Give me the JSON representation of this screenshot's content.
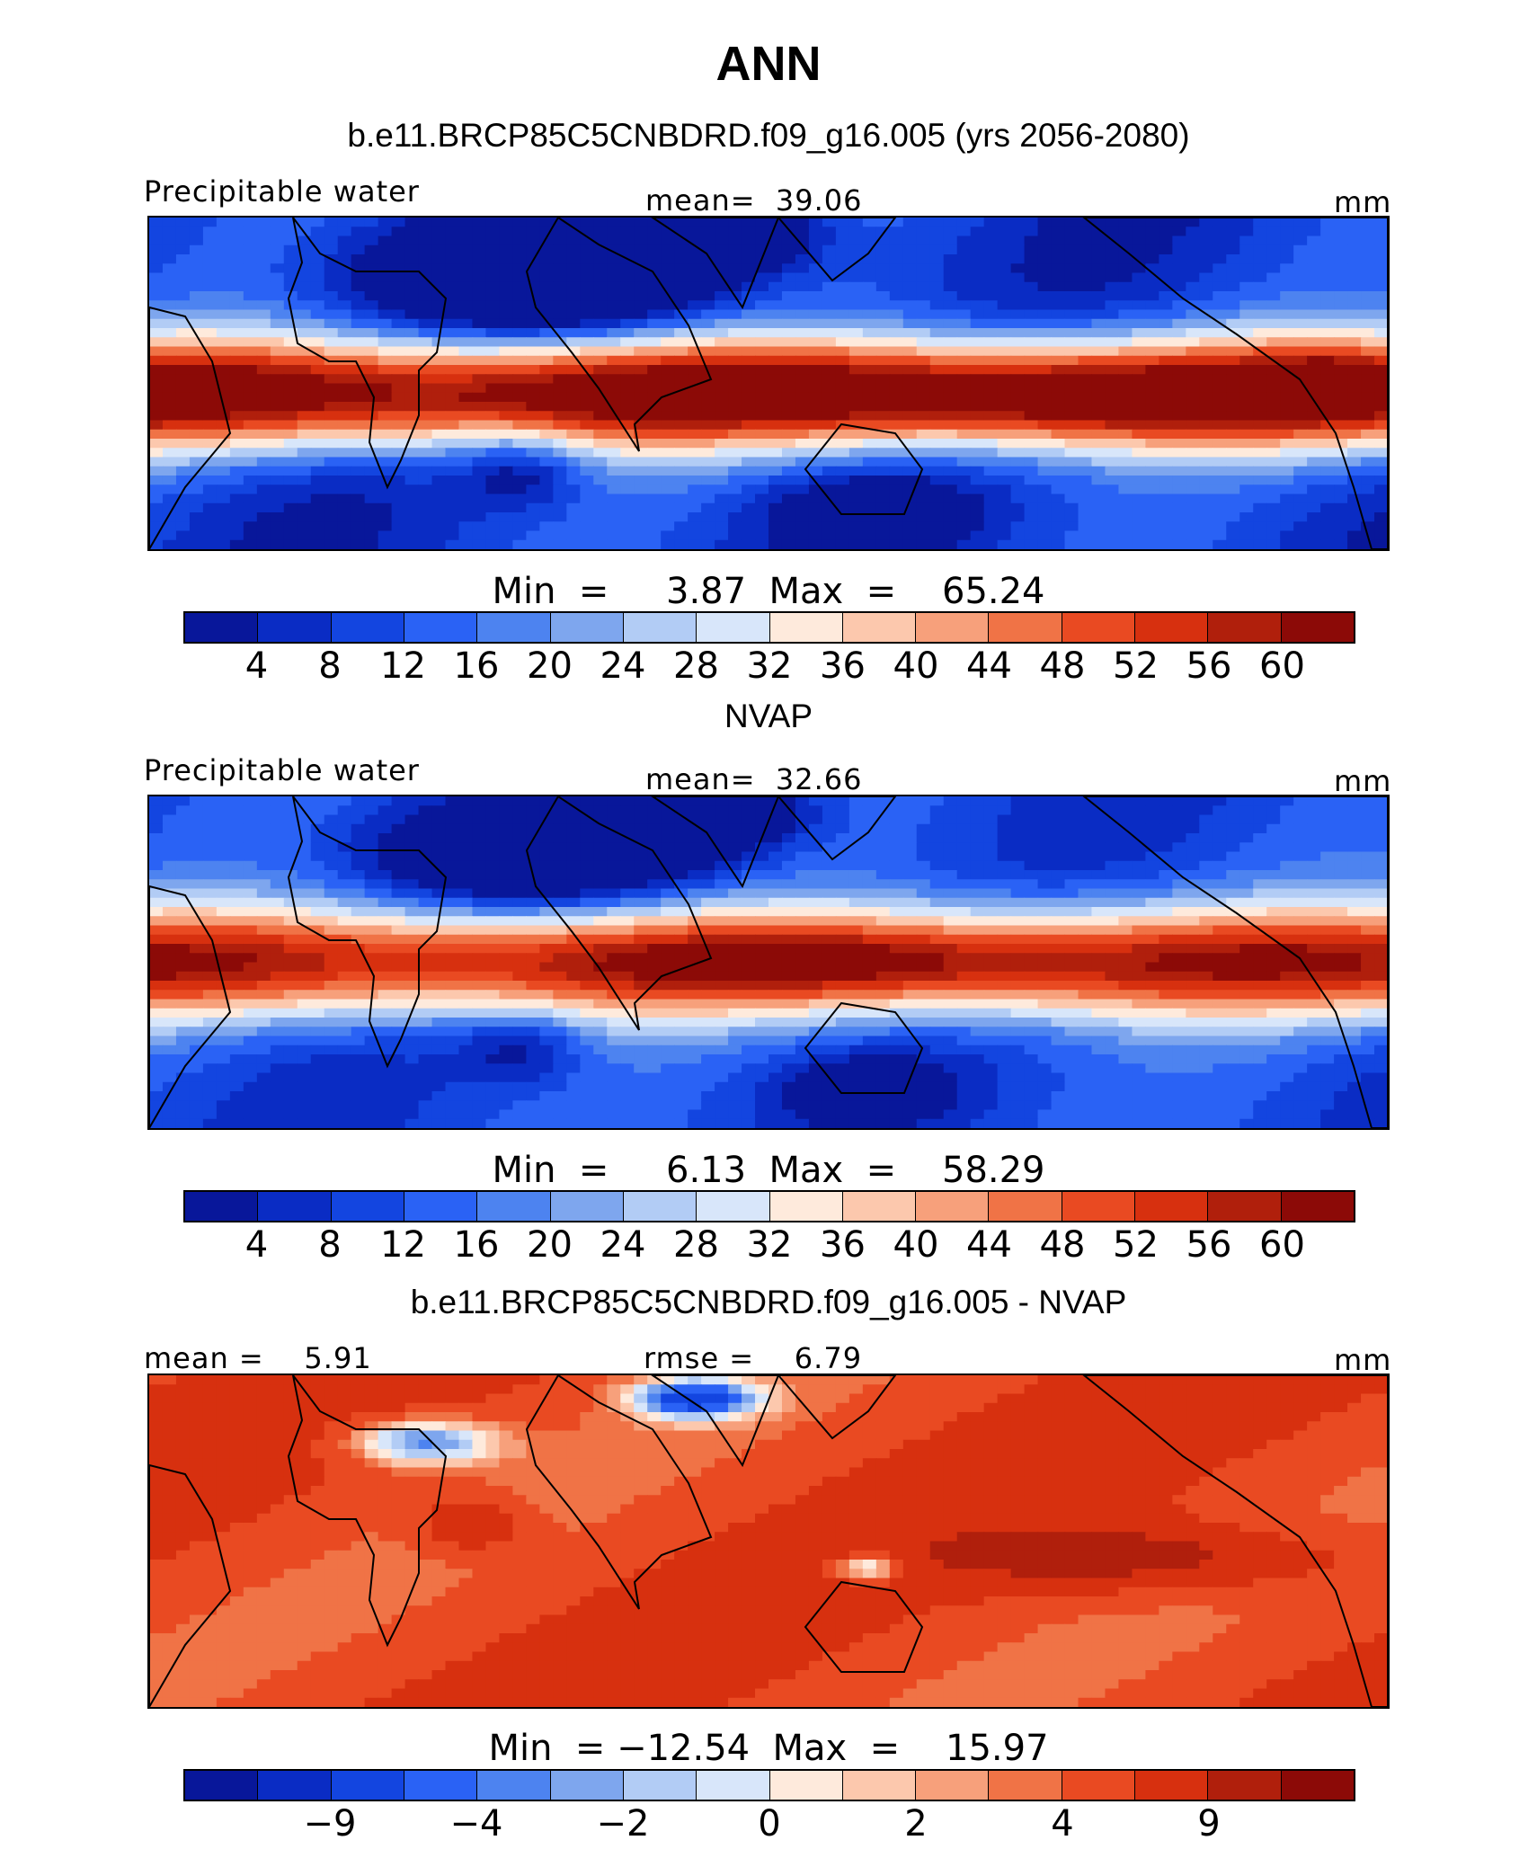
{
  "title": "ANN",
  "colors": {
    "palette": [
      "#08179a",
      "#0a2cc4",
      "#1345e0",
      "#2a62f5",
      "#4d83f0",
      "#7ea6ee",
      "#b2ccf5",
      "#d8e6fa",
      "#feeadc",
      "#fcc8ad",
      "#f7a07b",
      "#f07346",
      "#e94a22",
      "#d7300f",
      "#b01f0c",
      "#8c0a07"
    ],
    "coastline": "#000000"
  },
  "chart_data": [
    {
      "type": "heatmap",
      "title": "b.e11.BRCP85C5CNBDRD.f09_g16.005 (yrs 2056-2080)",
      "left_label": "Precipitable water",
      "center_label": "mean=  39.06",
      "right_label": "mm",
      "mean": 39.06,
      "units": "mm",
      "minmax_text": "Min  =     3.87  Max  =    65.24",
      "min": 3.87,
      "max": 65.24,
      "levels": [
        4,
        8,
        12,
        16,
        20,
        24,
        28,
        32,
        36,
        40,
        44,
        48,
        52,
        56,
        60
      ],
      "tick_labels": [
        "4",
        "8",
        "12",
        "16",
        "20",
        "24",
        "28",
        "32",
        "36",
        "40",
        "44",
        "48",
        "52",
        "56",
        "60"
      ]
    },
    {
      "type": "heatmap",
      "title": "NVAP",
      "left_label": "Precipitable water",
      "center_label": "mean=  32.66",
      "right_label": "mm",
      "mean": 32.66,
      "units": "mm",
      "minmax_text": "Min  =     6.13  Max  =    58.29",
      "min": 6.13,
      "max": 58.29,
      "levels": [
        4,
        8,
        12,
        16,
        20,
        24,
        28,
        32,
        36,
        40,
        44,
        48,
        52,
        56,
        60
      ],
      "tick_labels": [
        "4",
        "8",
        "12",
        "16",
        "20",
        "24",
        "28",
        "32",
        "36",
        "40",
        "44",
        "48",
        "52",
        "56",
        "60"
      ]
    },
    {
      "type": "heatmap",
      "title": "b.e11.BRCP85C5CNBDRD.f09_g16.005 - NVAP",
      "left_label": "mean =    5.91",
      "center_label": "rmse =    6.79",
      "right_label": "mm",
      "mean": 5.91,
      "rmse": 6.79,
      "units": "mm",
      "minmax_text": "Min  = −12.54  Max  =    15.97",
      "min": -12.54,
      "max": 15.97,
      "tick_labels": [
        "",
        "−9",
        "",
        "−4",
        "",
        "−2",
        "",
        "0",
        "",
        "2",
        "",
        "4",
        "",
        "9",
        ""
      ]
    }
  ]
}
